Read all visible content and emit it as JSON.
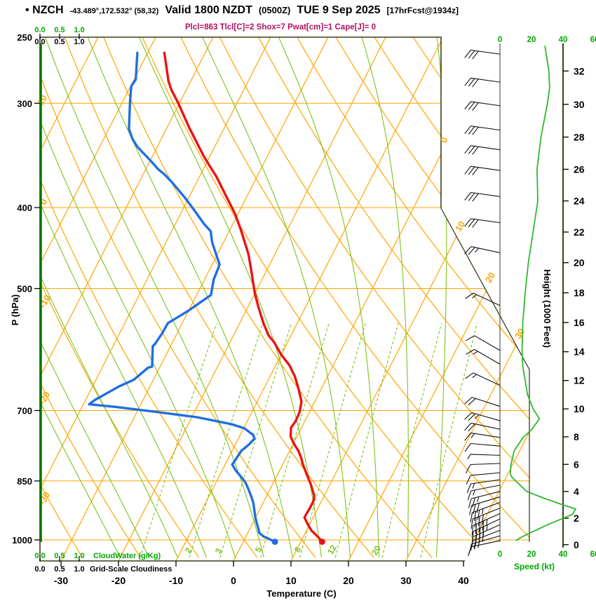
{
  "header": {
    "bullet": "•",
    "station": "NZCH",
    "coords": "-43.489°,172.532° (58,32)",
    "valid": "Valid 1800 NZDT",
    "valid_zulu": "(0500Z)",
    "date": "TUE 9 Sep 2025",
    "fcst": "[17hrFcst@1934z]"
  },
  "stats_line": "Plcl=863 Tlcl[C]=2 Shox=7 Pwat[cm]=1 Cape[J]= 0",
  "axes": {
    "pressure": {
      "label": "P (hPa)",
      "ticks": [
        250,
        300,
        400,
        500,
        700,
        850,
        1000
      ]
    },
    "temperature": {
      "label": "Temperature (C)",
      "ticks": [
        -30,
        -20,
        -10,
        0,
        10,
        20,
        30,
        40
      ]
    },
    "height": {
      "label": "Height (1000 Feet)",
      "ticks": [
        0,
        2,
        4,
        6,
        8,
        10,
        12,
        14,
        16,
        18,
        20,
        22,
        24,
        26,
        28,
        30,
        32
      ]
    },
    "speed": {
      "label": "Speed (kt)",
      "ticks": [
        0,
        20,
        40,
        60
      ]
    },
    "cloudwater": {
      "label": "CloudWater (g/Kg)",
      "ticks": [
        "0.0",
        "0.5",
        "1.0"
      ]
    },
    "cloudiness": {
      "label": "Grid-Scale Cloudiness",
      "ticks": [
        "0.0",
        "0.5",
        "1.0"
      ]
    }
  },
  "iso_labels": {
    "dry_adiabats_left": [
      "10",
      "0",
      "-10",
      "-20",
      "-30"
    ],
    "isotherms_right": [
      "0",
      "10",
      "20",
      "30"
    ],
    "mixing_ratio": [
      "2",
      "3",
      "5",
      "8",
      "12",
      "20"
    ]
  },
  "colors": {
    "isotherm_orange": "#FFA500",
    "adiabat_green": "#7CC31C",
    "temperature_red": "#EC1212",
    "dewpoint_blue": "#1F6FE0",
    "speed_green": "#2EB82E",
    "axis_green": "#00A800",
    "stats_magenta": "#B01060",
    "border": "#3D3D1F",
    "barb_black": "#111111",
    "cloudwater_green": "#008000"
  },
  "chart_data": {
    "type": "skewt_sounding",
    "pressure_range_hpa": [
      250,
      1050
    ],
    "temperature_axis_range_c": [
      -30,
      40
    ],
    "pressure_gridlines": [
      300,
      400,
      500,
      700,
      850,
      1000
    ],
    "isotherms": {
      "start": -120,
      "end": 40,
      "step": 10
    },
    "dry_adiabats": {
      "start": -30,
      "end": 190,
      "step": 10
    },
    "moist_adiabats": [
      -20,
      -15,
      -10,
      -5,
      0,
      5,
      10,
      15,
      20,
      25,
      30,
      35
    ],
    "mixing_ratio_lines": [
      1,
      2,
      3,
      5,
      8,
      12,
      20,
      30
    ],
    "temperature_profile_p_c": [
      [
        261,
        -57.1
      ],
      [
        282,
        -53.9
      ],
      [
        289,
        -52.6
      ],
      [
        299,
        -50.4
      ],
      [
        321,
        -46.1
      ],
      [
        347,
        -41.1
      ],
      [
        358,
        -38.9
      ],
      [
        367,
        -37.1
      ],
      [
        389,
        -33.4
      ],
      [
        407,
        -30.5
      ],
      [
        426,
        -28.0
      ],
      [
        454,
        -24.7
      ],
      [
        472,
        -23.0
      ],
      [
        507,
        -20.0
      ],
      [
        527,
        -18.1
      ],
      [
        551,
        -15.8
      ],
      [
        569,
        -13.9
      ],
      [
        580,
        -12.3
      ],
      [
        600,
        -10.0
      ],
      [
        618,
        -7.6
      ],
      [
        637,
        -5.7
      ],
      [
        660,
        -3.9
      ],
      [
        683,
        -2.3
      ],
      [
        703,
        -1.7
      ],
      [
        721,
        -1.6
      ],
      [
        734,
        -1.8
      ],
      [
        752,
        -1.1
      ],
      [
        767,
        0.1
      ],
      [
        782,
        1.5
      ],
      [
        797,
        2.6
      ],
      [
        809,
        3.3
      ],
      [
        831,
        4.8
      ],
      [
        857,
        6.6
      ],
      [
        886,
        8.3
      ],
      [
        899,
        8.6
      ],
      [
        917,
        8.6
      ],
      [
        931,
        8.5
      ],
      [
        940,
        8.5
      ],
      [
        957,
        9.6
      ],
      [
        975,
        10.9
      ],
      [
        988,
        12.2
      ],
      [
        1000,
        13.3
      ],
      [
        1005,
        13.7
      ]
    ],
    "dewpoint_profile_p_c": [
      [
        261,
        -61.8
      ],
      [
        281,
        -59.7
      ],
      [
        286,
        -59.9
      ],
      [
        299,
        -58.7
      ],
      [
        322,
        -56.5
      ],
      [
        331,
        -55.0
      ],
      [
        338,
        -53.5
      ],
      [
        344,
        -51.9
      ],
      [
        350,
        -50.3
      ],
      [
        360,
        -47.8
      ],
      [
        365,
        -46.3
      ],
      [
        373,
        -44.3
      ],
      [
        389,
        -40.7
      ],
      [
        403,
        -37.9
      ],
      [
        418,
        -35.1
      ],
      [
        427,
        -33.2
      ],
      [
        440,
        -32.0
      ],
      [
        456,
        -30.1
      ],
      [
        468,
        -28.7
      ],
      [
        488,
        -28.4
      ],
      [
        509,
        -27.5
      ],
      [
        532,
        -30.1
      ],
      [
        550,
        -32.5
      ],
      [
        566,
        -32.6
      ],
      [
        583,
        -32.9
      ],
      [
        586,
        -33.1
      ],
      [
        620,
        -31.4
      ],
      [
        622,
        -32.0
      ],
      [
        643,
        -33.4
      ],
      [
        655,
        -35.4
      ],
      [
        680,
        -38.4
      ],
      [
        688,
        -39.0
      ],
      [
        693,
        -34.2
      ],
      [
        703,
        -26.4
      ],
      [
        713,
        -19.1
      ],
      [
        727,
        -12.4
      ],
      [
        735,
        -9.9
      ],
      [
        749,
        -7.7
      ],
      [
        757,
        -7.2
      ],
      [
        770,
        -7.7
      ],
      [
        782,
        -8.4
      ],
      [
        808,
        -8.7
      ],
      [
        812,
        -8.8
      ],
      [
        825,
        -7.7
      ],
      [
        852,
        -5.0
      ],
      [
        869,
        -3.8
      ],
      [
        886,
        -2.7
      ],
      [
        903,
        -1.7
      ],
      [
        939,
        -0.1
      ],
      [
        957,
        0.8
      ],
      [
        970,
        1.5
      ],
      [
        981,
        2.0
      ],
      [
        991,
        3.1
      ],
      [
        996,
        4.0
      ],
      [
        1005,
        5.5
      ]
    ],
    "surface": {
      "pressure_hpa": 1005,
      "temperature_c": 13.7,
      "dewpoint_c": 5.5
    },
    "cloudwater_gkg": 0.0,
    "grid_scale_cloudiness": 0.0,
    "wind_barbs_p_tilt_full_half": [
      [
        262,
        8,
        3,
        0
      ],
      [
        283,
        8,
        3,
        0
      ],
      [
        302,
        8,
        3,
        0
      ],
      [
        323,
        8,
        3,
        0
      ],
      [
        341,
        8,
        3,
        0
      ],
      [
        361,
        8,
        3,
        0
      ],
      [
        388,
        8,
        3,
        0
      ],
      [
        417,
        8,
        3,
        0
      ],
      [
        453,
        12,
        2,
        1
      ],
      [
        524,
        25,
        1,
        1
      ],
      [
        593,
        30,
        1,
        0
      ],
      [
        616,
        30,
        1,
        1
      ],
      [
        653,
        25,
        1,
        1
      ],
      [
        692,
        18,
        2,
        0
      ],
      [
        720,
        16,
        2,
        1
      ],
      [
        737,
        12,
        2,
        0
      ],
      [
        754,
        9,
        1,
        1
      ],
      [
        772,
        5,
        1,
        0
      ],
      [
        792,
        2,
        0,
        1
      ],
      [
        810,
        -2,
        1,
        0
      ],
      [
        831,
        -5,
        1,
        0
      ],
      [
        847,
        -8,
        1,
        1
      ],
      [
        860,
        -11,
        1,
        1
      ],
      [
        875,
        -14,
        2,
        1
      ],
      [
        888,
        -17,
        3,
        0
      ],
      [
        902,
        -20,
        3,
        1
      ],
      [
        916,
        -22,
        4,
        0
      ],
      [
        930,
        -24,
        4,
        1
      ],
      [
        944,
        -25,
        4,
        1
      ],
      [
        959,
        -24,
        4,
        0
      ],
      [
        974,
        -21,
        3,
        0
      ],
      [
        989,
        -16,
        1,
        1
      ],
      [
        1002,
        -12,
        1,
        0
      ]
    ],
    "speed_profile_kft_kt": [
      [
        33.5,
        28.5
      ],
      [
        32,
        31
      ],
      [
        31,
        31.5
      ],
      [
        30,
        30
      ],
      [
        28,
        26
      ],
      [
        26,
        23.5
      ],
      [
        24,
        24
      ],
      [
        22,
        21
      ],
      [
        20,
        18
      ],
      [
        18,
        16
      ],
      [
        16,
        14.5
      ],
      [
        14,
        14
      ],
      [
        13,
        14.5
      ],
      [
        12,
        16
      ],
      [
        11,
        17.5
      ],
      [
        10,
        21
      ],
      [
        9.3,
        25
      ],
      [
        8.5,
        20
      ],
      [
        8,
        15
      ],
      [
        7,
        9
      ],
      [
        6,
        7
      ],
      [
        5.3,
        6.5
      ],
      [
        5,
        8
      ],
      [
        4,
        17
      ],
      [
        3.5,
        28
      ],
      [
        3,
        40
      ],
      [
        2.7,
        48
      ],
      [
        2.3,
        46
      ],
      [
        2,
        40
      ],
      [
        1.5,
        30
      ],
      [
        1,
        21
      ],
      [
        0.6,
        14
      ],
      [
        0.3,
        10
      ]
    ]
  }
}
